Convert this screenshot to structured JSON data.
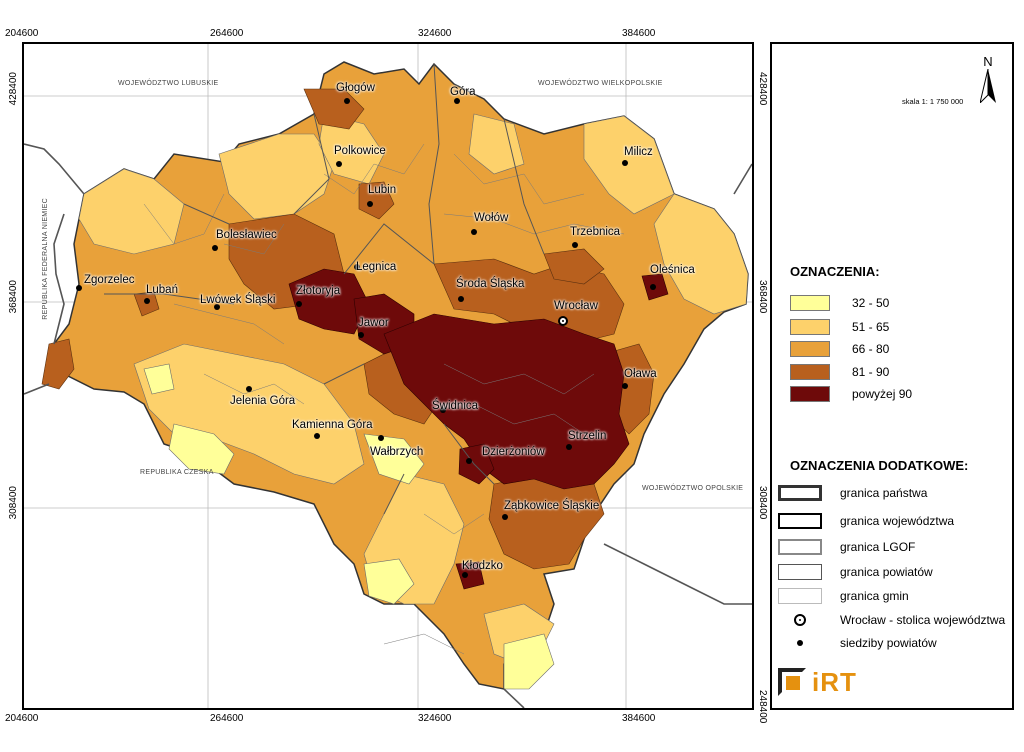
{
  "coords": {
    "top": [
      "204600",
      "264600",
      "324600",
      "384600"
    ],
    "bottom": [
      "204600",
      "264600",
      "324600",
      "384600"
    ],
    "left": [
      "428400",
      "368400",
      "308400"
    ],
    "right": [
      "428400",
      "368400",
      "308400",
      "248400"
    ]
  },
  "neighbors": {
    "lubuskie": "WOJEWÓDZTWO LUBUSKIE",
    "wielkopolskie": "WOJEWÓDZTWO WIELKOPOLSKIE",
    "niemcy": "REPUBLIKA FEDERALNA NIEMIEC",
    "czeska": "REPUBLIKA CZESKA",
    "opolskie": "WOJEWÓDZTWO OPOLSKIE"
  },
  "cities": {
    "glogow": "Głogów",
    "gora": "Góra",
    "polkowice": "Polkowice",
    "milicz": "Milicz",
    "lubin": "Lubin",
    "wolow": "Wołów",
    "trzebnica": "Trzebnica",
    "boleslawiec": "Bolesławiec",
    "oles": "Oleśnica",
    "legnica": "Legnica",
    "sroda": "Środa Śląska",
    "zgorzelec": "Zgorzelec",
    "luban": "Lubań",
    "lwowek": "Lwówek Śląski",
    "zlotoryja": "Złotoryja",
    "wroclaw": "Wrocław",
    "jawor": "Jawor",
    "olawa": "Oława",
    "jelenia": "Jelenia Góra",
    "swidnica": "Świdnica",
    "kamienna": "Kamienna Góra",
    "walbrzych": "Wałbrzych",
    "strzelin": "Strzelin",
    "dzierzoniow": "Dzierżoniów",
    "zabkowice": "Ząbkowice Śląskie",
    "klodzko": "Kłodzko"
  },
  "legend": {
    "north": "N",
    "scale": "skala 1: 1 750 000",
    "title": "OZNACZENIA:",
    "classes": [
      {
        "label": "32 - 50",
        "color": "#ffff99"
      },
      {
        "label": "51 - 65",
        "color": "#fdd16b"
      },
      {
        "label": "66 - 80",
        "color": "#e8a13a"
      },
      {
        "label": "81 - 90",
        "color": "#b8601e"
      },
      {
        "label": "powyżej 90",
        "color": "#6e0a0a"
      }
    ],
    "extra_title": "OZNACZENIA DODATKOWE:",
    "extra": [
      "granica państwa",
      "granica województwa",
      "granica LGOF",
      "granica powiatów",
      "granica gmin",
      "Wrocław - stolica województwa",
      "siedziby powiatów"
    ],
    "logo": "iRT"
  }
}
